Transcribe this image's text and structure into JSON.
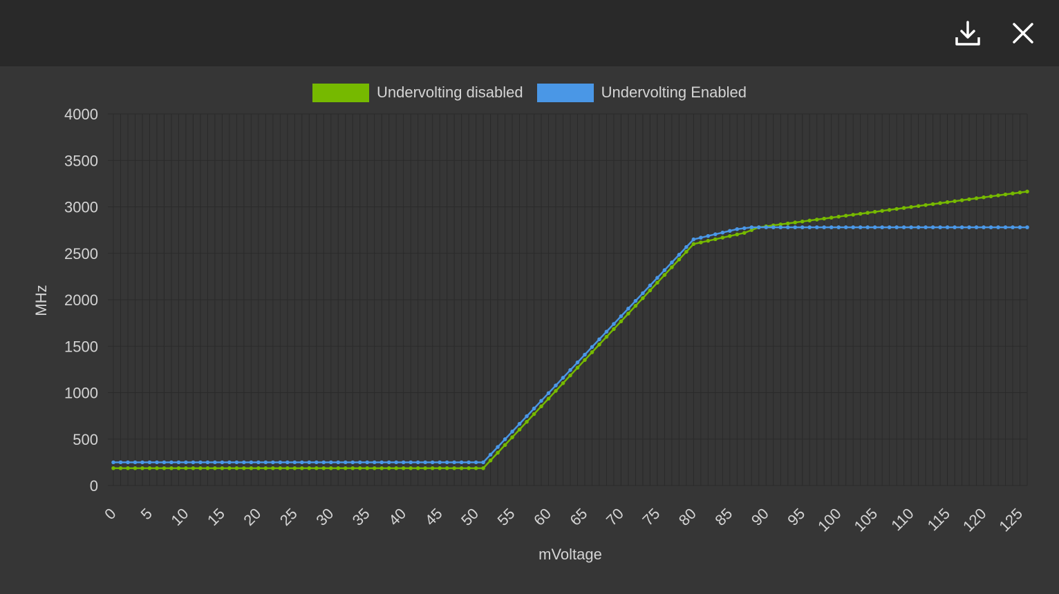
{
  "toolbar": {
    "download_icon": "download-icon",
    "close_icon": "close-icon"
  },
  "colors": {
    "disabled": "#76b900",
    "enabled": "#4a97e6",
    "axis_text": "#d4d4d4",
    "grid": "#2a2a2a"
  },
  "chart_data": {
    "type": "line",
    "xlabel": "mVoltage",
    "ylabel": "MHz",
    "ylim": [
      0,
      4000
    ],
    "yticks": [
      0,
      500,
      1000,
      1500,
      2000,
      2500,
      3000,
      3500,
      4000
    ],
    "xlim": [
      0,
      126
    ],
    "xticks": [
      0,
      5,
      10,
      15,
      20,
      25,
      30,
      35,
      40,
      45,
      50,
      55,
      60,
      65,
      70,
      75,
      80,
      85,
      90,
      95,
      100,
      105,
      110,
      115,
      120,
      125
    ],
    "grid": true,
    "legend_position": "top-center",
    "series": [
      {
        "name": "Undervolting disabled",
        "color": "#76b900",
        "points": [
          [
            0,
            187
          ],
          [
            51,
            187
          ],
          [
            80,
            2600
          ],
          [
            87,
            2720
          ],
          [
            89,
            2780
          ],
          [
            126,
            3165
          ]
        ]
      },
      {
        "name": "Undervolting Enabled",
        "color": "#4a97e6",
        "points": [
          [
            0,
            250
          ],
          [
            51,
            250
          ],
          [
            80,
            2650
          ],
          [
            86,
            2760
          ],
          [
            88,
            2780
          ],
          [
            126,
            2780
          ]
        ]
      }
    ]
  }
}
